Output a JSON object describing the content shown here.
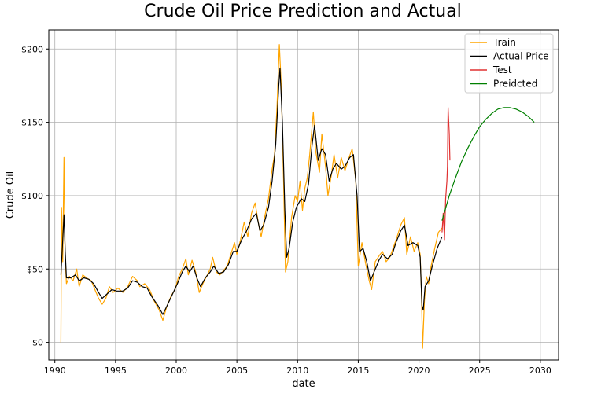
{
  "chart_data": {
    "type": "line",
    "title": "Crude Oil Price Prediction and Actual",
    "xlabel": "date",
    "ylabel": "Crude Oil",
    "xlim": [
      1989.5,
      2031.5
    ],
    "ylim": [
      -12,
      213
    ],
    "x_ticks": [
      1990,
      1995,
      2000,
      2005,
      2010,
      2015,
      2020,
      2025,
      2030
    ],
    "x_tick_labels": [
      "1990",
      "1995",
      "2000",
      "2005",
      "2010",
      "2015",
      "2020",
      "2025",
      "2030"
    ],
    "y_ticks": [
      0,
      50,
      100,
      150,
      200
    ],
    "y_tick_labels": [
      "$0",
      "$50",
      "$100",
      "$150",
      "$200"
    ],
    "grid": true,
    "legend_position": "top-right",
    "series": [
      {
        "name": "Train",
        "color": "#ffa500",
        "points": [
          [
            1990.5,
            0
          ],
          [
            1990.55,
            92
          ],
          [
            1990.65,
            55
          ],
          [
            1990.75,
            126
          ],
          [
            1990.85,
            58
          ],
          [
            1990.95,
            40
          ],
          [
            1991.2,
            45
          ],
          [
            1991.5,
            42
          ],
          [
            1991.8,
            50
          ],
          [
            1992.0,
            38
          ],
          [
            1992.3,
            46
          ],
          [
            1992.6,
            44
          ],
          [
            1993.0,
            42
          ],
          [
            1993.3,
            36
          ],
          [
            1993.6,
            30
          ],
          [
            1993.9,
            26
          ],
          [
            1994.2,
            30
          ],
          [
            1994.5,
            38
          ],
          [
            1994.8,
            34
          ],
          [
            1995.2,
            37
          ],
          [
            1995.6,
            34
          ],
          [
            1996.0,
            38
          ],
          [
            1996.4,
            45
          ],
          [
            1996.8,
            42
          ],
          [
            1997.0,
            38
          ],
          [
            1997.4,
            40
          ],
          [
            1997.8,
            36
          ],
          [
            1998.2,
            28
          ],
          [
            1998.6,
            22
          ],
          [
            1998.9,
            15
          ],
          [
            1999.2,
            24
          ],
          [
            1999.6,
            32
          ],
          [
            1999.9,
            36
          ],
          [
            2000.2,
            45
          ],
          [
            2000.5,
            50
          ],
          [
            2000.8,
            57
          ],
          [
            2001.0,
            46
          ],
          [
            2001.3,
            56
          ],
          [
            2001.6,
            48
          ],
          [
            2001.9,
            34
          ],
          [
            2002.2,
            40
          ],
          [
            2002.5,
            45
          ],
          [
            2002.8,
            50
          ],
          [
            2003.0,
            58
          ],
          [
            2003.3,
            48
          ],
          [
            2003.6,
            46
          ],
          [
            2003.9,
            49
          ],
          [
            2004.2,
            52
          ],
          [
            2004.5,
            60
          ],
          [
            2004.8,
            68
          ],
          [
            2005.0,
            60
          ],
          [
            2005.3,
            70
          ],
          [
            2005.6,
            82
          ],
          [
            2005.9,
            72
          ],
          [
            2006.2,
            88
          ],
          [
            2006.5,
            95
          ],
          [
            2006.8,
            80
          ],
          [
            2007.0,
            72
          ],
          [
            2007.3,
            86
          ],
          [
            2007.6,
            98
          ],
          [
            2007.9,
            118
          ],
          [
            2008.1,
            128
          ],
          [
            2008.3,
            160
          ],
          [
            2008.5,
            203
          ],
          [
            2008.65,
            175
          ],
          [
            2008.85,
            110
          ],
          [
            2009.0,
            48
          ],
          [
            2009.2,
            55
          ],
          [
            2009.5,
            85
          ],
          [
            2009.8,
            100
          ],
          [
            2010.0,
            96
          ],
          [
            2010.2,
            110
          ],
          [
            2010.4,
            90
          ],
          [
            2010.6,
            105
          ],
          [
            2010.8,
            112
          ],
          [
            2011.0,
            128
          ],
          [
            2011.3,
            157
          ],
          [
            2011.5,
            130
          ],
          [
            2011.8,
            116
          ],
          [
            2012.0,
            142
          ],
          [
            2012.3,
            120
          ],
          [
            2012.5,
            100
          ],
          [
            2012.8,
            115
          ],
          [
            2013.0,
            128
          ],
          [
            2013.3,
            112
          ],
          [
            2013.6,
            126
          ],
          [
            2013.9,
            117
          ],
          [
            2014.2,
            125
          ],
          [
            2014.5,
            132
          ],
          [
            2014.8,
            110
          ],
          [
            2015.0,
            52
          ],
          [
            2015.3,
            68
          ],
          [
            2015.6,
            54
          ],
          [
            2015.9,
            42
          ],
          [
            2016.1,
            36
          ],
          [
            2016.4,
            55
          ],
          [
            2016.8,
            60
          ],
          [
            2017.0,
            62
          ],
          [
            2017.3,
            55
          ],
          [
            2017.6,
            58
          ],
          [
            2017.9,
            65
          ],
          [
            2018.2,
            72
          ],
          [
            2018.5,
            80
          ],
          [
            2018.8,
            85
          ],
          [
            2019.0,
            60
          ],
          [
            2019.3,
            72
          ],
          [
            2019.6,
            62
          ],
          [
            2019.9,
            68
          ],
          [
            2020.1,
            60
          ],
          [
            2020.2,
            35
          ],
          [
            2020.3,
            -4
          ],
          [
            2020.45,
            28
          ],
          [
            2020.6,
            45
          ],
          [
            2020.8,
            40
          ],
          [
            2021.0,
            52
          ],
          [
            2021.3,
            64
          ],
          [
            2021.6,
            75
          ],
          [
            2021.9,
            78
          ]
        ]
      },
      {
        "name": "Actual Price",
        "color": "#000000",
        "points": [
          [
            1990.5,
            46
          ],
          [
            1990.6,
            62
          ],
          [
            1990.75,
            87
          ],
          [
            1990.85,
            63
          ],
          [
            1990.95,
            44
          ],
          [
            1991.3,
            44
          ],
          [
            1991.7,
            46
          ],
          [
            1992.0,
            42
          ],
          [
            1992.4,
            44
          ],
          [
            1992.8,
            43
          ],
          [
            1993.2,
            40
          ],
          [
            1993.6,
            34
          ],
          [
            1993.9,
            30
          ],
          [
            1994.3,
            33
          ],
          [
            1994.7,
            36
          ],
          [
            1995.1,
            35
          ],
          [
            1995.6,
            35
          ],
          [
            1996.0,
            37
          ],
          [
            1996.4,
            42
          ],
          [
            1996.8,
            41
          ],
          [
            1997.2,
            38
          ],
          [
            1997.6,
            37
          ],
          [
            1998.0,
            31
          ],
          [
            1998.5,
            25
          ],
          [
            1998.9,
            19
          ],
          [
            1999.3,
            26
          ],
          [
            1999.7,
            33
          ],
          [
            2000.1,
            40
          ],
          [
            2000.5,
            48
          ],
          [
            2000.8,
            52
          ],
          [
            2001.1,
            48
          ],
          [
            2001.4,
            52
          ],
          [
            2001.7,
            44
          ],
          [
            2002.0,
            38
          ],
          [
            2002.4,
            44
          ],
          [
            2002.8,
            48
          ],
          [
            2003.1,
            52
          ],
          [
            2003.5,
            47
          ],
          [
            2003.9,
            48
          ],
          [
            2004.3,
            53
          ],
          [
            2004.7,
            62
          ],
          [
            2005.0,
            62
          ],
          [
            2005.4,
            70
          ],
          [
            2005.8,
            76
          ],
          [
            2006.2,
            84
          ],
          [
            2006.6,
            88
          ],
          [
            2006.9,
            76
          ],
          [
            2007.2,
            80
          ],
          [
            2007.6,
            92
          ],
          [
            2007.9,
            110
          ],
          [
            2008.2,
            135
          ],
          [
            2008.45,
            175
          ],
          [
            2008.55,
            187
          ],
          [
            2008.75,
            150
          ],
          [
            2008.95,
            90
          ],
          [
            2009.1,
            58
          ],
          [
            2009.3,
            64
          ],
          [
            2009.6,
            82
          ],
          [
            2009.9,
            92
          ],
          [
            2010.3,
            98
          ],
          [
            2010.6,
            96
          ],
          [
            2010.9,
            108
          ],
          [
            2011.2,
            135
          ],
          [
            2011.4,
            148
          ],
          [
            2011.7,
            124
          ],
          [
            2012.0,
            132
          ],
          [
            2012.3,
            128
          ],
          [
            2012.6,
            110
          ],
          [
            2012.9,
            118
          ],
          [
            2013.2,
            122
          ],
          [
            2013.6,
            118
          ],
          [
            2013.9,
            120
          ],
          [
            2014.3,
            126
          ],
          [
            2014.6,
            128
          ],
          [
            2014.9,
            100
          ],
          [
            2015.1,
            62
          ],
          [
            2015.4,
            64
          ],
          [
            2015.7,
            55
          ],
          [
            2016.0,
            42
          ],
          [
            2016.3,
            48
          ],
          [
            2016.7,
            56
          ],
          [
            2017.0,
            60
          ],
          [
            2017.4,
            57
          ],
          [
            2017.8,
            60
          ],
          [
            2018.1,
            68
          ],
          [
            2018.5,
            76
          ],
          [
            2018.8,
            80
          ],
          [
            2019.1,
            66
          ],
          [
            2019.5,
            68
          ],
          [
            2019.9,
            66
          ],
          [
            2020.1,
            58
          ],
          [
            2020.25,
            25
          ],
          [
            2020.35,
            22
          ],
          [
            2020.5,
            38
          ],
          [
            2020.8,
            42
          ],
          [
            2021.1,
            52
          ],
          [
            2021.5,
            64
          ],
          [
            2021.9,
            72
          ]
        ]
      },
      {
        "name": "Test",
        "color": "#e03030",
        "points": [
          [
            2021.9,
            75
          ],
          [
            2022.0,
            88
          ],
          [
            2022.1,
            70
          ],
          [
            2022.2,
            98
          ],
          [
            2022.3,
            110
          ],
          [
            2022.35,
            120
          ],
          [
            2022.4,
            160
          ],
          [
            2022.5,
            142
          ],
          [
            2022.55,
            124
          ]
        ]
      },
      {
        "name": "Preidcted",
        "color": "#008000",
        "points": [
          [
            2021.9,
            83
          ],
          [
            2022.5,
            100
          ],
          [
            2023.0,
            112
          ],
          [
            2023.5,
            123
          ],
          [
            2024.0,
            132
          ],
          [
            2024.5,
            140
          ],
          [
            2025.0,
            147
          ],
          [
            2025.5,
            152
          ],
          [
            2026.0,
            156
          ],
          [
            2026.5,
            159
          ],
          [
            2027.0,
            160
          ],
          [
            2027.5,
            160
          ],
          [
            2028.0,
            159
          ],
          [
            2028.5,
            157
          ],
          [
            2029.0,
            154
          ],
          [
            2029.5,
            150
          ]
        ]
      }
    ]
  }
}
